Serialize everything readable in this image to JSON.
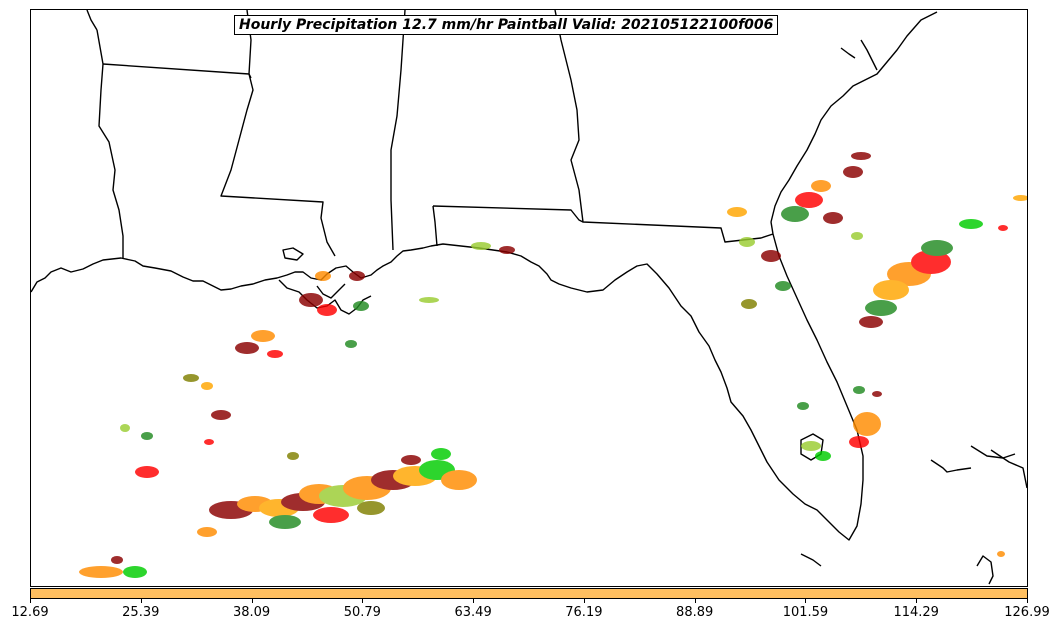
{
  "title": "Hourly Precipitation 12.7 mm/hr Paintball Valid: 202105122100f006",
  "colorbar": {
    "color": "#ffbf60",
    "ticks": [
      "12.69",
      "25.39",
      "38.09",
      "50.79",
      "63.49",
      "76.19",
      "88.89",
      "101.59",
      "114.29",
      "126.99"
    ]
  },
  "colors": {
    "coastline": "#000000",
    "paintball_members": [
      "#8b0000",
      "#ff0000",
      "#ff8c00",
      "#ffa500",
      "#00cc00",
      "#228b22",
      "#9acd32",
      "#808000",
      "#000000"
    ]
  }
}
